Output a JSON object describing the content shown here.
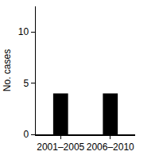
{
  "chart_data": {
    "type": "bar",
    "y_label": "No. cases",
    "categories": [
      "2001–2005",
      "2006–2010"
    ],
    "values": [
      4,
      4
    ],
    "color": "#000000",
    "ylim": [
      0,
      12.5
    ],
    "yticks": [
      0,
      5,
      10
    ],
    "grid": false
  }
}
